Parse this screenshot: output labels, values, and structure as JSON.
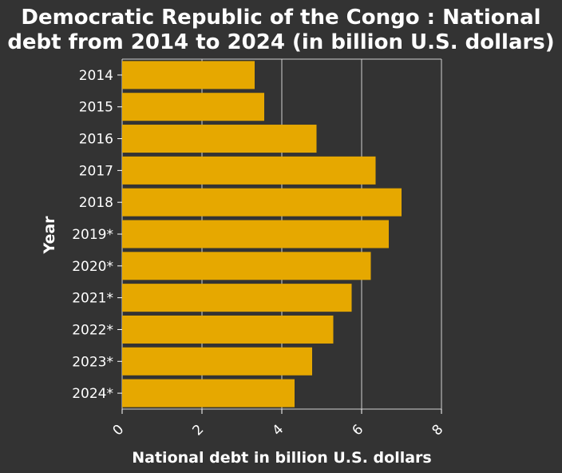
{
  "chart_data": {
    "type": "bar",
    "orientation": "horizontal",
    "title_lines": [
      "Democratic Republic of the Congo : National",
      "debt from 2014 to 2024 (in billion U.S. dollars)"
    ],
    "title": "Democratic Republic of the Congo : National debt from 2014 to 2024 (in billion U.S. dollars)",
    "xlabel": "National debt in billion U.S. dollars",
    "ylabel": "Year",
    "categories": [
      "2014",
      "2015",
      "2016",
      "2017",
      "2018",
      "2019*",
      "2020*",
      "2021*",
      "2022*",
      "2023*",
      "2024*"
    ],
    "values": [
      3.32,
      3.56,
      4.87,
      6.35,
      7.0,
      6.68,
      6.23,
      5.75,
      5.29,
      4.76,
      4.32
    ],
    "xlim": [
      0,
      8
    ],
    "xticks": [
      "0",
      "2",
      "4",
      "6",
      "8"
    ],
    "grid": true,
    "colors": {
      "bar": "#e6a800",
      "background": "#333333",
      "grid": "#d0d0d0",
      "text": "#ffffff"
    }
  }
}
